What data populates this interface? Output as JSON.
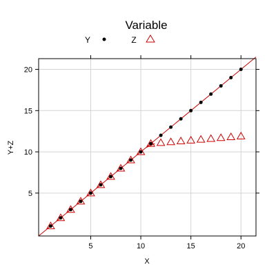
{
  "chart_data": {
    "type": "scatter",
    "legend": {
      "title": "Variable",
      "placement": "top-center",
      "entries": [
        {
          "label": "Y",
          "symbol": "filled-circle",
          "color": "#000000"
        },
        {
          "label": "Z",
          "symbol": "open-triangle",
          "color": "#cc0000"
        }
      ]
    },
    "xlabel": "X",
    "ylabel": "Y+Z",
    "xlim": [
      -0.2,
      21.5
    ],
    "ylim": [
      -0.2,
      21.3
    ],
    "xticks": [
      5,
      10,
      15,
      20
    ],
    "yticks": [
      5,
      10,
      15,
      20
    ],
    "grid": true,
    "series": [
      {
        "name": "Y",
        "symbol": "filled-circle",
        "color": "#000000",
        "x": [
          1,
          2,
          3,
          4,
          5,
          6,
          7,
          8,
          9,
          10,
          11,
          12,
          13,
          14,
          15,
          16,
          17,
          18,
          19,
          20
        ],
        "y": [
          1,
          2,
          3,
          4,
          5,
          6,
          7,
          8,
          9,
          10,
          11,
          12,
          13,
          14,
          15,
          16,
          17,
          18,
          19,
          20
        ]
      },
      {
        "name": "Z",
        "symbol": "open-triangle",
        "color": "#cc0000",
        "x": [
          1,
          2,
          3,
          4,
          5,
          6,
          7,
          8,
          9,
          10,
          11,
          12,
          13,
          14,
          15,
          16,
          17,
          18,
          19,
          20
        ],
        "y": [
          1,
          2,
          3,
          4,
          5,
          6,
          7,
          8,
          9,
          10,
          11,
          11.1,
          11.2,
          11.3,
          11.4,
          11.5,
          11.6,
          11.7,
          11.8,
          11.9
        ]
      }
    ],
    "fit_line": {
      "color": "#cc0000",
      "segments": [
        {
          "from": [
            -0.2,
            -0.2
          ],
          "to": [
            10.5,
            10.5
          ]
        },
        {
          "from": [
            10.5,
            10.5
          ],
          "to": [
            21.5,
            21.5
          ]
        }
      ],
      "branch": {
        "from": [
          10.5,
          10.5
        ],
        "to": [
          11.4,
          11.0
        ]
      }
    },
    "colors": {
      "axis": "#000000",
      "grid": "#d3d3d3",
      "y_series": "#000000",
      "z_series": "#cc0000"
    }
  }
}
